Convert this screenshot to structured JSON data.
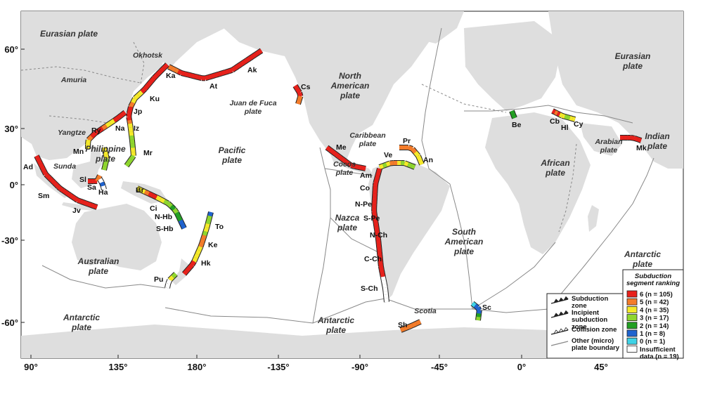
{
  "map": {
    "longitude_ticks": [
      "90°",
      "135°",
      "180°",
      "-135°",
      "-90°",
      "-45°",
      "0°",
      "45°"
    ],
    "latitude_ticks": [
      "60°",
      "30°",
      "0°",
      "-30°",
      "-60°"
    ],
    "plates": [
      {
        "id": "eurasian-w",
        "lines": [
          "Eurasian plate"
        ]
      },
      {
        "id": "amuria",
        "lines": [
          "Amuria"
        ]
      },
      {
        "id": "okhotsk",
        "lines": [
          "Okhotsk"
        ]
      },
      {
        "id": "yangtze",
        "lines": [
          "Yangtze"
        ]
      },
      {
        "id": "sunda",
        "lines": [
          "Sunda"
        ]
      },
      {
        "id": "philippine",
        "lines": [
          "Philippine",
          "plate"
        ]
      },
      {
        "id": "pacific",
        "lines": [
          "Pacific",
          "plate"
        ]
      },
      {
        "id": "juan-de-fuca",
        "lines": [
          "Juan de Fuca",
          "plate"
        ]
      },
      {
        "id": "north-american",
        "lines": [
          "North",
          "American",
          "plate"
        ]
      },
      {
        "id": "caribbean",
        "lines": [
          "Caribbean",
          "plate"
        ]
      },
      {
        "id": "cocos",
        "lines": [
          "Cocos",
          "plate"
        ]
      },
      {
        "id": "nazca",
        "lines": [
          "Nazca",
          "plate"
        ]
      },
      {
        "id": "south-american",
        "lines": [
          "South",
          "American",
          "plate"
        ]
      },
      {
        "id": "australian",
        "lines": [
          "Australian",
          "plate"
        ]
      },
      {
        "id": "antarctic-sw",
        "lines": [
          "Antarctic",
          "plate"
        ]
      },
      {
        "id": "antarctic-s",
        "lines": [
          "Antarctic",
          "plate"
        ]
      },
      {
        "id": "antarctic-se",
        "lines": [
          "Antarctic",
          "plate"
        ]
      },
      {
        "id": "scotia",
        "lines": [
          "Scotia"
        ]
      },
      {
        "id": "african",
        "lines": [
          "African",
          "plate"
        ]
      },
      {
        "id": "arabian",
        "lines": [
          "Arabian",
          "plate"
        ]
      },
      {
        "id": "indian",
        "lines": [
          "Indian",
          "plate"
        ]
      },
      {
        "id": "eurasian-e",
        "lines": [
          "Eurasian",
          "plate"
        ]
      }
    ],
    "segment_labels": [
      "Ka",
      "At",
      "Ak",
      "Cs",
      "Ku",
      "Jp",
      "Iz",
      "Na",
      "Ry",
      "Mn",
      "Mr",
      "Ad",
      "Sl",
      "Sa",
      "Ha",
      "Sm",
      "Jv",
      "Br",
      "Ci",
      "N-Hb",
      "S-Hb",
      "To",
      "Ke",
      "Hk",
      "Pu",
      "Me",
      "Ve",
      "Pr",
      "An",
      "Am",
      "Co",
      "N-Pe",
      "S-Pe",
      "N-Ch",
      "C-Ch",
      "S-Ch",
      "Sc",
      "Sh",
      "Be",
      "Cb",
      "Hl",
      "Cy",
      "Mk"
    ],
    "colors": {
      "ocean": "#ffffff",
      "land": "#dedede",
      "boundary": "#888888",
      "rank6": "#e8211b",
      "rank5": "#f47c2a",
      "rank4": "#f5e92a",
      "rank3": "#8fd62e",
      "rank2": "#23a023",
      "rank1": "#1f63cf",
      "rank0": "#3fd3e6",
      "insufficient": "#ffffff"
    }
  },
  "legend_boundaries": {
    "items": [
      {
        "lines": [
          "Subduction",
          "zone"
        ]
      },
      {
        "lines": [
          "Incipient",
          "subduction",
          "zone"
        ]
      },
      {
        "lines": [
          "Collision zone"
        ]
      },
      {
        "lines": [
          "Other (micro)",
          "plate boundary"
        ]
      }
    ]
  },
  "legend_ranking": {
    "title_lines": [
      "Subduction",
      "segment ranking"
    ],
    "items": [
      {
        "label": "6  (n = 105)",
        "color": "#e8211b"
      },
      {
        "label": "5  (n = 42)",
        "color": "#f47c2a"
      },
      {
        "label": "4  (n = 35)",
        "color": "#f5e92a"
      },
      {
        "label": "3  (n = 17)",
        "color": "#8fd62e"
      },
      {
        "label": "2  (n = 14)",
        "color": "#23a023"
      },
      {
        "label": "1  (n = 8)",
        "color": "#1f63cf"
      },
      {
        "label": "0  (n = 1)",
        "color": "#3fd3e6"
      },
      {
        "label": "Insufficient data (n = 19)",
        "color": "#ffffff",
        "lines": [
          "Insufficient",
          "data (n = 19)"
        ]
      }
    ]
  }
}
